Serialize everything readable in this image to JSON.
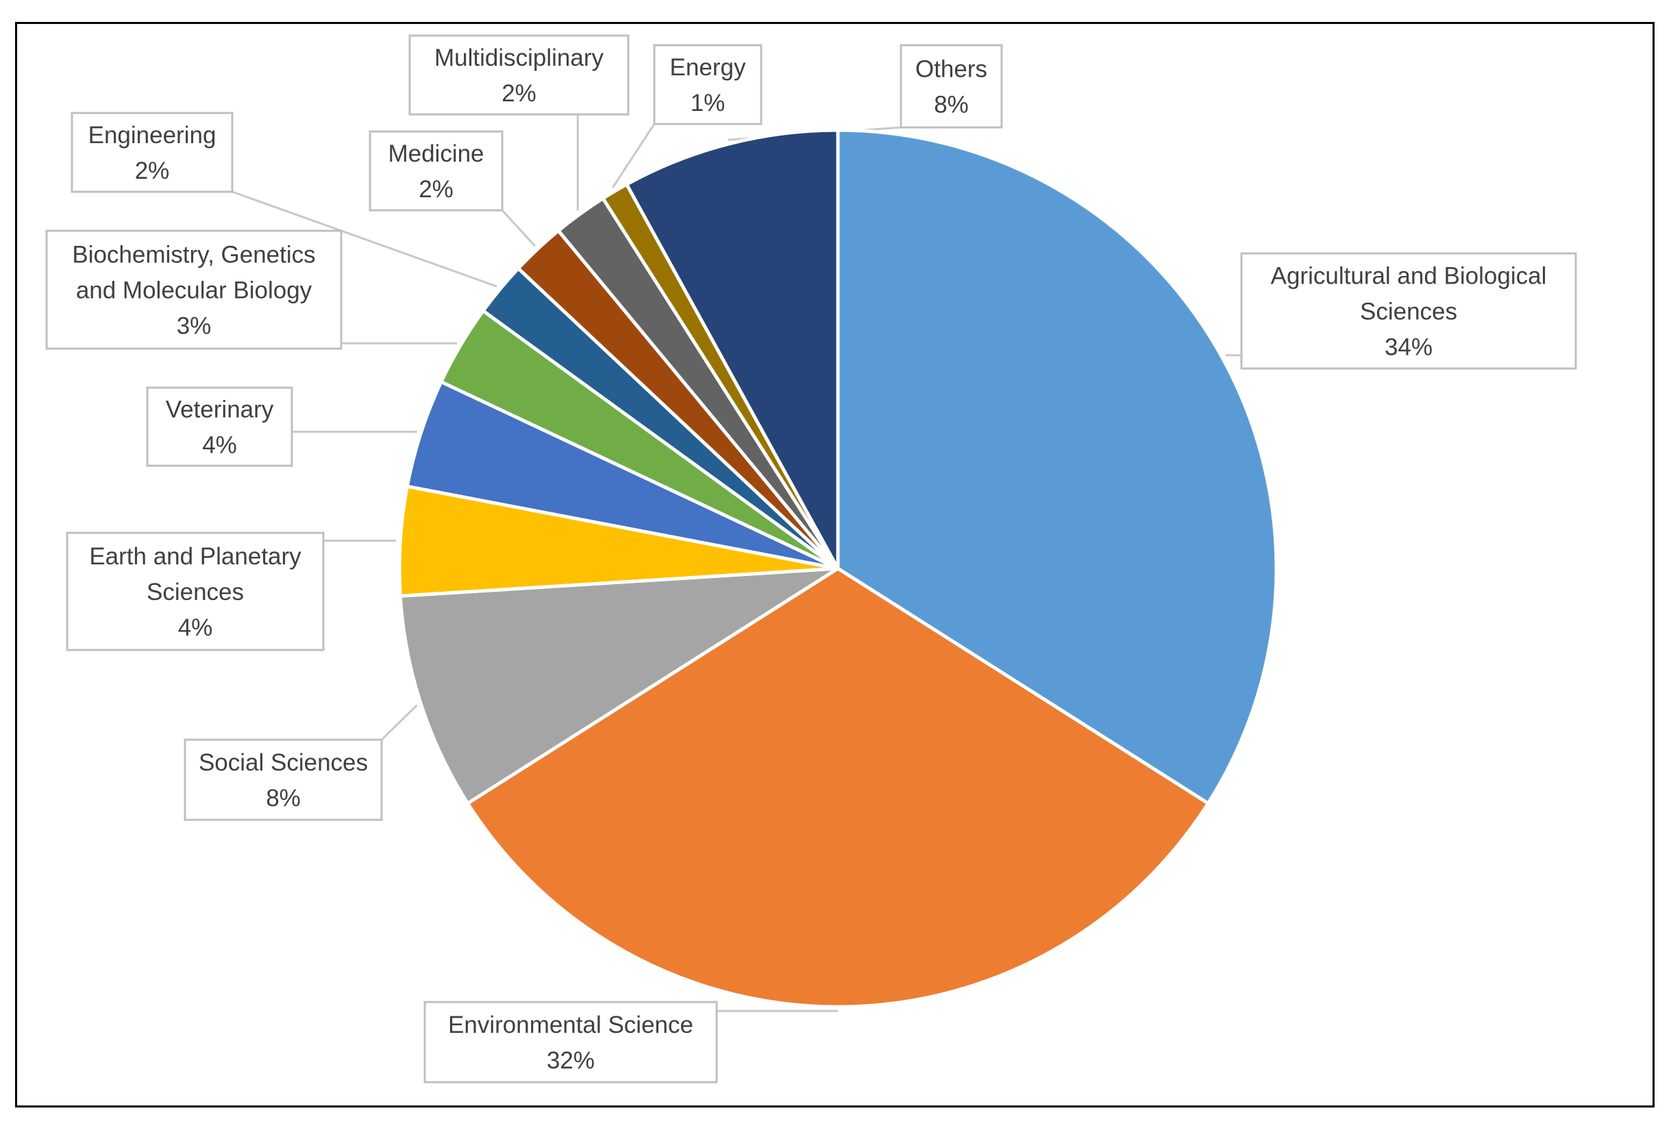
{
  "chart_data": {
    "type": "pie",
    "title": "",
    "unit": "%",
    "start_angle_deg": 0,
    "direction": "clockwise",
    "legend": "none",
    "slices": [
      {
        "name": "Agricultural and Biological Sciences",
        "label_lines": [
          "Agricultural and Biological",
          "Sciences"
        ],
        "value": 34,
        "color": "#5b9bd5"
      },
      {
        "name": "Environmental Science",
        "label_lines": [
          "Environmental Science"
        ],
        "value": 32,
        "color": "#ed7d31"
      },
      {
        "name": "Social Sciences",
        "label_lines": [
          "Social Sciences"
        ],
        "value": 8,
        "color": "#a5a5a5"
      },
      {
        "name": "Earth and Planetary Sciences",
        "label_lines": [
          "Earth and Planetary",
          "Sciences"
        ],
        "value": 4,
        "color": "#ffc000"
      },
      {
        "name": "Veterinary",
        "label_lines": [
          "Veterinary"
        ],
        "value": 4,
        "color": "#4472c4"
      },
      {
        "name": "Biochemistry, Genetics and Molecular Biology",
        "label_lines": [
          "Biochemistry, Genetics",
          "and Molecular Biology"
        ],
        "value": 3,
        "color": "#70ad47"
      },
      {
        "name": "Engineering",
        "label_lines": [
          "Engineering"
        ],
        "value": 2,
        "color": "#255e91"
      },
      {
        "name": "Medicine",
        "label_lines": [
          "Medicine"
        ],
        "value": 2,
        "color": "#9e480e"
      },
      {
        "name": "Multidisciplinary",
        "label_lines": [
          "Multidisciplinary"
        ],
        "value": 2,
        "color": "#636363"
      },
      {
        "name": "Energy",
        "label_lines": [
          "Energy"
        ],
        "value": 1,
        "color": "#997300"
      },
      {
        "name": "Others",
        "label_lines": [
          "Others"
        ],
        "value": 8,
        "color": "#264478"
      }
    ]
  }
}
